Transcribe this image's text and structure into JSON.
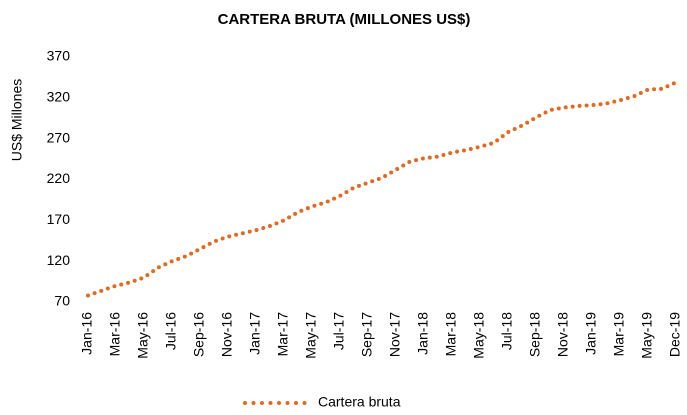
{
  "chart_data": {
    "type": "line",
    "title": "CARTERA BRUTA (MILLONES US$)",
    "y_label": "US$ Millones",
    "categories": [
      "Jan-16",
      null,
      "Mar-16",
      null,
      "May-16",
      null,
      "Jul-16",
      null,
      "Sep-16",
      null,
      "Nov-16",
      null,
      "Jan-17",
      null,
      "Mar-17",
      null,
      "May-17",
      null,
      "Jul-17",
      null,
      "Sep-17",
      null,
      "Nov-17",
      null,
      "Jan-18",
      null,
      "Mar-18",
      null,
      "May-18",
      null,
      "Jul-18",
      null,
      "Sep-18",
      null,
      "Nov-18",
      null,
      "Jan-19",
      null,
      "Mar-19",
      null,
      "May-19",
      null,
      "Dec-19"
    ],
    "series": [
      {
        "name": "Cartera bruta",
        "color": "#e2691f",
        "values": [
          78,
          84,
          90,
          94,
          100,
          112,
          120,
          126,
          135,
          144,
          150,
          154,
          158,
          163,
          170,
          180,
          187,
          192,
          200,
          210,
          216,
          222,
          232,
          242,
          246,
          248,
          253,
          256,
          260,
          265,
          278,
          286,
          296,
          305,
          308,
          310,
          311,
          313,
          317,
          322,
          330,
          331,
          339
        ]
      }
    ],
    "ylim": [
      70,
      370
    ],
    "yticks": [
      70,
      120,
      170,
      220,
      270,
      320,
      370
    ],
    "grid": false,
    "legend": "bottom"
  }
}
